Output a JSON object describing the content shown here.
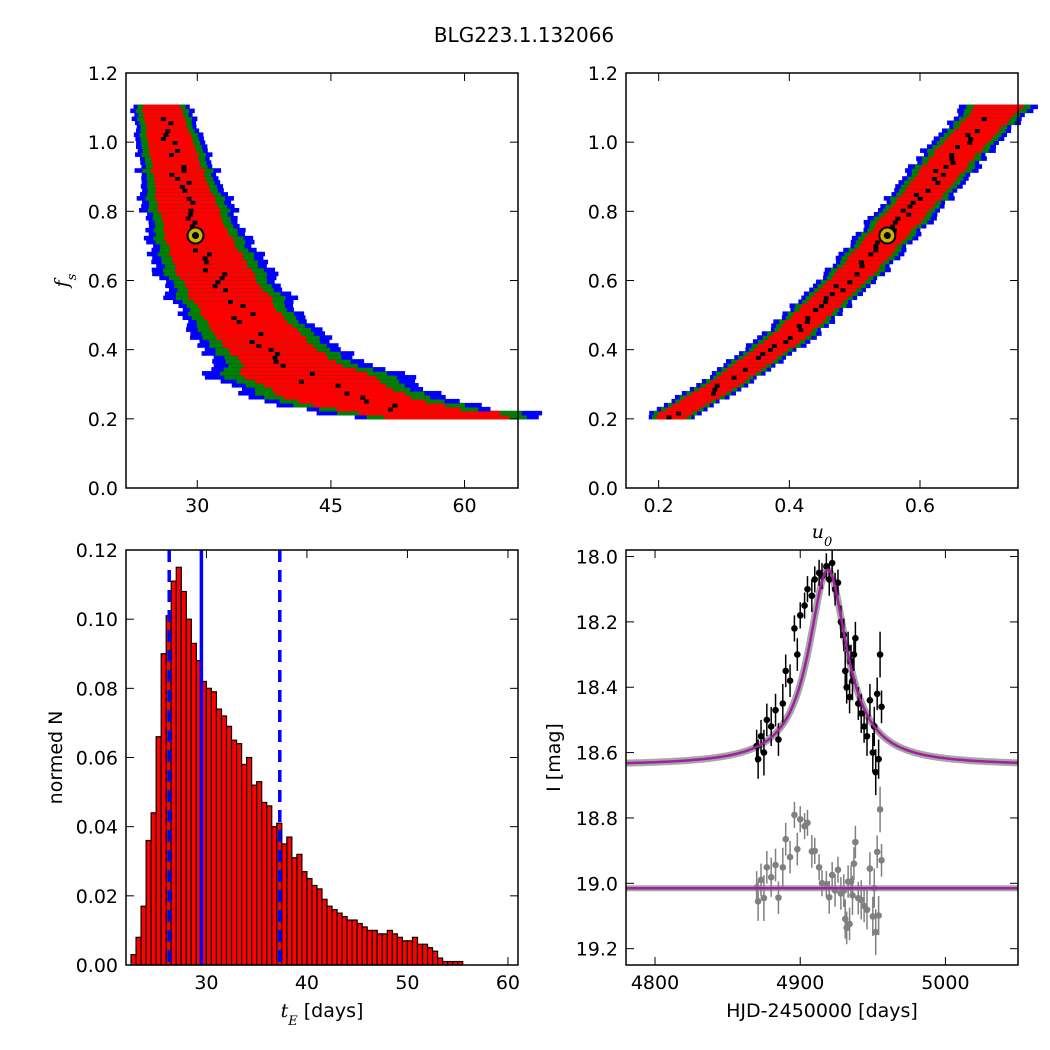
{
  "title": "BLG223.1.132066",
  "chart_data": [
    {
      "type": "heatmap",
      "panel": "fs-vs-tE",
      "xlabel": "",
      "ylabel": "f_s",
      "xlim": [
        22,
        66
      ],
      "ylim": [
        0.0,
        1.2
      ],
      "xticks": [
        "30",
        "45",
        "60"
      ],
      "yticks": [
        "0.0",
        "0.2",
        "0.4",
        "0.6",
        "0.8",
        "1.0",
        "1.2"
      ],
      "colors": {
        "outer": "#0000ff",
        "mid": "#008000",
        "inner": "#ff0000",
        "best_samples": "#000000",
        "marker": "#c8b400"
      },
      "best_fit": {
        "x": 29.8,
        "y": 0.73
      },
      "ridge": [
        [
          26.0,
          1.1
        ],
        [
          27.0,
          1.0
        ],
        [
          28.5,
          0.85
        ],
        [
          30.0,
          0.73
        ],
        [
          32.0,
          0.62
        ],
        [
          35.0,
          0.5
        ],
        [
          38.0,
          0.41
        ],
        [
          42.0,
          0.33
        ],
        [
          47.0,
          0.26
        ],
        [
          52.0,
          0.23
        ],
        [
          58.0,
          0.21
        ]
      ]
    },
    {
      "type": "heatmap",
      "panel": "fs-vs-u0",
      "xlabel": "u_0",
      "ylabel": "",
      "xlim": [
        0.15,
        0.75
      ],
      "ylim": [
        0.0,
        1.2
      ],
      "xticks": [
        "0.2",
        "0.4",
        "0.6"
      ],
      "yticks": [
        "0.0",
        "0.2",
        "0.4",
        "0.6",
        "0.8",
        "1.0",
        "1.2"
      ],
      "colors": {
        "outer": "#0000ff",
        "mid": "#008000",
        "inner": "#ff0000",
        "best_samples": "#000000",
        "marker": "#c8b400"
      },
      "best_fit": {
        "x": 0.55,
        "y": 0.73
      },
      "ridge": [
        [
          0.22,
          0.21
        ],
        [
          0.3,
          0.3
        ],
        [
          0.4,
          0.44
        ],
        [
          0.5,
          0.62
        ],
        [
          0.55,
          0.73
        ],
        [
          0.6,
          0.84
        ],
        [
          0.66,
          0.98
        ],
        [
          0.72,
          1.1
        ]
      ]
    },
    {
      "type": "bar",
      "panel": "tE-histogram",
      "xlabel": "t_E [days]",
      "ylabel": "normed N",
      "xlim": [
        22,
        61
      ],
      "ylim": [
        0.0,
        0.12
      ],
      "xticks": [
        "30",
        "40",
        "50",
        "60"
      ],
      "yticks": [
        "0.00",
        "0.02",
        "0.04",
        "0.06",
        "0.08",
        "0.10",
        "0.12"
      ],
      "bin_start": 22.5,
      "bin_width": 0.5,
      "values": [
        0.003,
        0.008,
        0.017,
        0.036,
        0.044,
        0.066,
        0.09,
        0.101,
        0.111,
        0.115,
        0.108,
        0.1,
        0.093,
        0.088,
        0.082,
        0.08,
        0.079,
        0.074,
        0.072,
        0.069,
        0.065,
        0.064,
        0.058,
        0.06,
        0.052,
        0.053,
        0.047,
        0.046,
        0.04,
        0.041,
        0.035,
        0.037,
        0.031,
        0.032,
        0.027,
        0.025,
        0.023,
        0.022,
        0.019,
        0.017,
        0.016,
        0.015,
        0.014,
        0.013,
        0.013,
        0.012,
        0.011,
        0.01,
        0.01,
        0.009,
        0.009,
        0.01,
        0.009,
        0.008,
        0.007,
        0.007,
        0.008,
        0.006,
        0.006,
        0.005,
        0.004,
        0.002,
        0.001,
        0.001,
        0.001,
        0.001
      ],
      "median_line": 29.5,
      "confidence_lines": [
        26.3,
        37.3
      ],
      "colors": {
        "bar": "#ff0000",
        "lines": "#0000ff"
      }
    },
    {
      "type": "line",
      "panel": "light-curve",
      "xlabel": "HJD-2450000 [days]",
      "ylabel": "I [mag]",
      "xlim": [
        4780,
        5050
      ],
      "ylim": [
        19.25,
        17.98
      ],
      "xticks": [
        "4800",
        "4900",
        "5000"
      ],
      "yticks": [
        "18.0",
        "18.2",
        "18.4",
        "18.6",
        "18.8",
        "19.0",
        "19.2"
      ],
      "model": {
        "t0": 4919,
        "baseline": 18.64,
        "peak": 18.04,
        "width": 16,
        "residual_baseline": 19.015
      },
      "colors": {
        "model": "#a020a0",
        "model_band": "#808080",
        "data": "#000000",
        "residuals": "#808080"
      },
      "data_points": [
        [
          4870,
          18.58,
          0.05
        ],
        [
          4871,
          18.62,
          0.06
        ],
        [
          4873,
          18.55,
          0.05
        ],
        [
          4875,
          18.6,
          0.07
        ],
        [
          4877,
          18.5,
          0.05
        ],
        [
          4880,
          18.52,
          0.06
        ],
        [
          4883,
          18.47,
          0.05
        ],
        [
          4885,
          18.56,
          0.05
        ],
        [
          4888,
          18.45,
          0.06
        ],
        [
          4890,
          18.35,
          0.05
        ],
        [
          4893,
          18.38,
          0.05
        ],
        [
          4896,
          18.22,
          0.04
        ],
        [
          4898,
          18.3,
          0.05
        ],
        [
          4900,
          18.18,
          0.04
        ],
        [
          4903,
          18.15,
          0.04
        ],
        [
          4905,
          18.1,
          0.04
        ],
        [
          4908,
          18.12,
          0.05
        ],
        [
          4910,
          18.07,
          0.04
        ],
        [
          4913,
          18.05,
          0.04
        ],
        [
          4915,
          18.06,
          0.04
        ],
        [
          4918,
          18.03,
          0.04
        ],
        [
          4920,
          18.07,
          0.05
        ],
        [
          4922,
          18.02,
          0.04
        ],
        [
          4924,
          18.1,
          0.05
        ],
        [
          4926,
          18.08,
          0.04
        ],
        [
          4928,
          18.2,
          0.05
        ],
        [
          4930,
          18.24,
          0.05
        ],
        [
          4931,
          18.35,
          0.06
        ],
        [
          4932,
          18.4,
          0.05
        ],
        [
          4933,
          18.28,
          0.05
        ],
        [
          4934,
          18.43,
          0.05
        ],
        [
          4935,
          18.32,
          0.05
        ],
        [
          4936,
          18.38,
          0.06
        ],
        [
          4937,
          18.3,
          0.05
        ],
        [
          4938,
          18.25,
          0.05
        ],
        [
          4940,
          18.45,
          0.05
        ],
        [
          4942,
          18.48,
          0.06
        ],
        [
          4944,
          18.52,
          0.05
        ],
        [
          4946,
          18.55,
          0.06
        ],
        [
          4948,
          18.44,
          0.05
        ],
        [
          4950,
          18.6,
          0.06
        ],
        [
          4951,
          18.52,
          0.06
        ],
        [
          4952,
          18.66,
          0.07
        ],
        [
          4953,
          18.42,
          0.05
        ],
        [
          4954,
          18.62,
          0.06
        ],
        [
          4955,
          18.3,
          0.07
        ],
        [
          4956,
          18.46,
          0.05
        ]
      ]
    }
  ]
}
